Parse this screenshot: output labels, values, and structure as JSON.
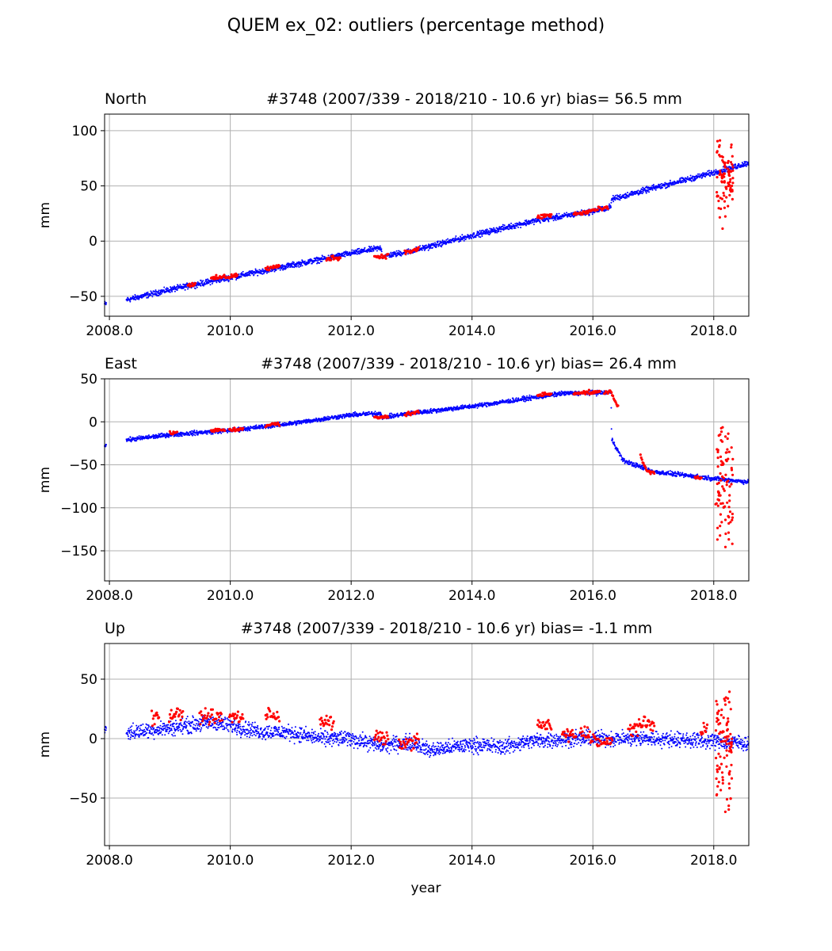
{
  "figure": {
    "title": "QUEM ex_02: outliers (percentage method)",
    "xlabel": "year"
  },
  "chart_data": [
    {
      "type": "scatter",
      "panel_label": "North",
      "title": "#3748 (2007/339 - 2018/210 - 10.6 yr) bias= 56.5 mm",
      "xlabel": "",
      "ylabel": "mm",
      "xlim": [
        2007.92,
        2018.58
      ],
      "ylim": [
        -68,
        115
      ],
      "xticks": [
        2008.0,
        2010.0,
        2012.0,
        2014.0,
        2016.0,
        2018.0
      ],
      "xtick_labels": [
        "2008.0",
        "2010.0",
        "2012.0",
        "2014.0",
        "2016.0",
        "2018.0"
      ],
      "yticks": [
        -50,
        0,
        50,
        100
      ],
      "ytick_labels": [
        "−50",
        "0",
        "50",
        "100"
      ],
      "grid": true,
      "series": [
        {
          "color": "#0000ff",
          "points_trend": [
            [
              2007.92,
              -57
            ],
            [
              2008.3,
              -53
            ],
            [
              2009.0,
              -44
            ],
            [
              2010.0,
              -33
            ],
            [
              2011.0,
              -22
            ],
            [
              2012.0,
              -11
            ],
            [
              2012.5,
              -6
            ],
            [
              2012.51,
              -14
            ],
            [
              2013.0,
              -9
            ],
            [
              2014.0,
              5
            ],
            [
              2015.0,
              18
            ],
            [
              2016.0,
              27
            ],
            [
              2016.3,
              31
            ],
            [
              2016.31,
              38
            ],
            [
              2017.0,
              48
            ],
            [
              2018.0,
              62
            ],
            [
              2018.58,
              71
            ]
          ],
          "noise": 1.8
        },
        {
          "color": "#ff0000",
          "points_trend": [
            [
              2009.3,
              -40
            ],
            [
              2009.8,
              -33
            ],
            [
              2010.0,
              -32
            ],
            [
              2010.7,
              -24
            ],
            [
              2011.7,
              -15
            ],
            [
              2012.5,
              -14
            ],
            [
              2013.0,
              -9
            ],
            [
              2015.2,
              23
            ],
            [
              2015.8,
              25
            ],
            [
              2016.0,
              28
            ],
            [
              2016.25,
              30
            ]
          ],
          "noise": 1.5
        },
        {
          "color": "#ff0000",
          "cluster": {
            "x0": 2018.05,
            "x1": 2018.32,
            "ymin": 4,
            "ymax": 106
          }
        }
      ]
    },
    {
      "type": "scatter",
      "panel_label": "East",
      "title": "#3748 (2007/339 - 2018/210 - 10.6 yr) bias= 26.4 mm",
      "xlabel": "",
      "ylabel": "mm",
      "xlim": [
        2007.92,
        2018.58
      ],
      "ylim": [
        -185,
        50
      ],
      "xticks": [
        2008.0,
        2010.0,
        2012.0,
        2014.0,
        2016.0,
        2018.0
      ],
      "xtick_labels": [
        "2008.0",
        "2010.0",
        "2012.0",
        "2014.0",
        "2016.0",
        "2018.0"
      ],
      "yticks": [
        -150,
        -100,
        -50,
        0,
        50
      ],
      "ytick_labels": [
        "−150",
        "−100",
        "−50",
        "0",
        "50"
      ],
      "grid": true,
      "series": [
        {
          "color": "#0000ff",
          "points_trend": [
            [
              2007.92,
              -27
            ],
            [
              2008.3,
              -21
            ],
            [
              2009.0,
              -15
            ],
            [
              2010.0,
              -10
            ],
            [
              2011.0,
              -2
            ],
            [
              2012.0,
              8
            ],
            [
              2012.5,
              10
            ],
            [
              2012.51,
              5
            ],
            [
              2013.0,
              10
            ],
            [
              2014.0,
              18
            ],
            [
              2015.0,
              28
            ],
            [
              2015.5,
              33
            ],
            [
              2016.3,
              34
            ],
            [
              2016.31,
              -20
            ],
            [
              2016.5,
              -45
            ],
            [
              2017.0,
              -58
            ],
            [
              2018.0,
              -66
            ],
            [
              2018.58,
              -70
            ]
          ],
          "noise": 1.8
        },
        {
          "color": "#ff0000",
          "points_trend": [
            [
              2009.0,
              -13
            ],
            [
              2009.8,
              -10
            ],
            [
              2010.1,
              -9
            ],
            [
              2010.7,
              -3
            ],
            [
              2012.5,
              5
            ],
            [
              2013.0,
              10
            ],
            [
              2015.2,
              32
            ],
            [
              2015.8,
              34
            ],
            [
              2016.0,
              34
            ],
            [
              2016.3,
              35
            ],
            [
              2016.9,
              -58
            ],
            [
              2017.8,
              -65
            ]
          ],
          "noise": 1.5
        },
        {
          "color": "#ff0000",
          "cluster": {
            "x0": 2018.03,
            "x1": 2018.32,
            "ymin": -176,
            "ymax": 26
          }
        }
      ]
    },
    {
      "type": "scatter",
      "panel_label": "Up",
      "title": "#3748 (2007/339 - 2018/210 - 10.6 yr) bias= -1.1 mm",
      "xlabel": "year",
      "ylabel": "mm",
      "xlim": [
        2007.92,
        2018.58
      ],
      "ylim": [
        -90,
        80
      ],
      "xticks": [
        2008.0,
        2010.0,
        2012.0,
        2014.0,
        2016.0,
        2018.0
      ],
      "xtick_labels": [
        "2008.0",
        "2010.0",
        "2012.0",
        "2014.0",
        "2016.0",
        "2018.0"
      ],
      "yticks": [
        -50,
        0,
        50
      ],
      "ytick_labels": [
        "−50",
        "0",
        "50"
      ],
      "grid": true,
      "series": [
        {
          "color": "#0000ff",
          "points_trend": [
            [
              2007.92,
              8
            ],
            [
              2008.3,
              5
            ],
            [
              2009.0,
              9
            ],
            [
              2009.7,
              14
            ],
            [
              2010.5,
              6
            ],
            [
              2011.0,
              5
            ],
            [
              2011.5,
              0
            ],
            [
              2012.0,
              0
            ],
            [
              2012.5,
              -6
            ],
            [
              2013.0,
              -3
            ],
            [
              2013.3,
              -10
            ],
            [
              2014.0,
              -5
            ],
            [
              2014.5,
              -7
            ],
            [
              2015.0,
              -2
            ],
            [
              2015.7,
              0
            ],
            [
              2016.0,
              0
            ],
            [
              2017.0,
              0
            ],
            [
              2018.0,
              -2
            ],
            [
              2018.58,
              -4
            ]
          ],
          "noise": 4.5
        },
        {
          "color": "#ff0000",
          "points_trend": [
            [
              2008.7,
              18
            ],
            [
              2009.1,
              20
            ],
            [
              2009.6,
              19
            ],
            [
              2009.75,
              18
            ],
            [
              2010.1,
              18
            ],
            [
              2010.7,
              20
            ],
            [
              2011.6,
              14
            ],
            [
              2012.5,
              0
            ],
            [
              2012.9,
              -5
            ],
            [
              2013.0,
              -2
            ],
            [
              2015.2,
              12
            ],
            [
              2015.6,
              2
            ],
            [
              2015.9,
              5
            ],
            [
              2016.0,
              0
            ],
            [
              2016.2,
              -5
            ],
            [
              2016.7,
              10
            ],
            [
              2016.9,
              12
            ],
            [
              2017.9,
              8
            ]
          ],
          "noise": 4
        },
        {
          "color": "#ff0000",
          "cluster": {
            "x0": 2018.03,
            "x1": 2018.3,
            "ymin": -83,
            "ymax": 72
          }
        }
      ]
    }
  ]
}
